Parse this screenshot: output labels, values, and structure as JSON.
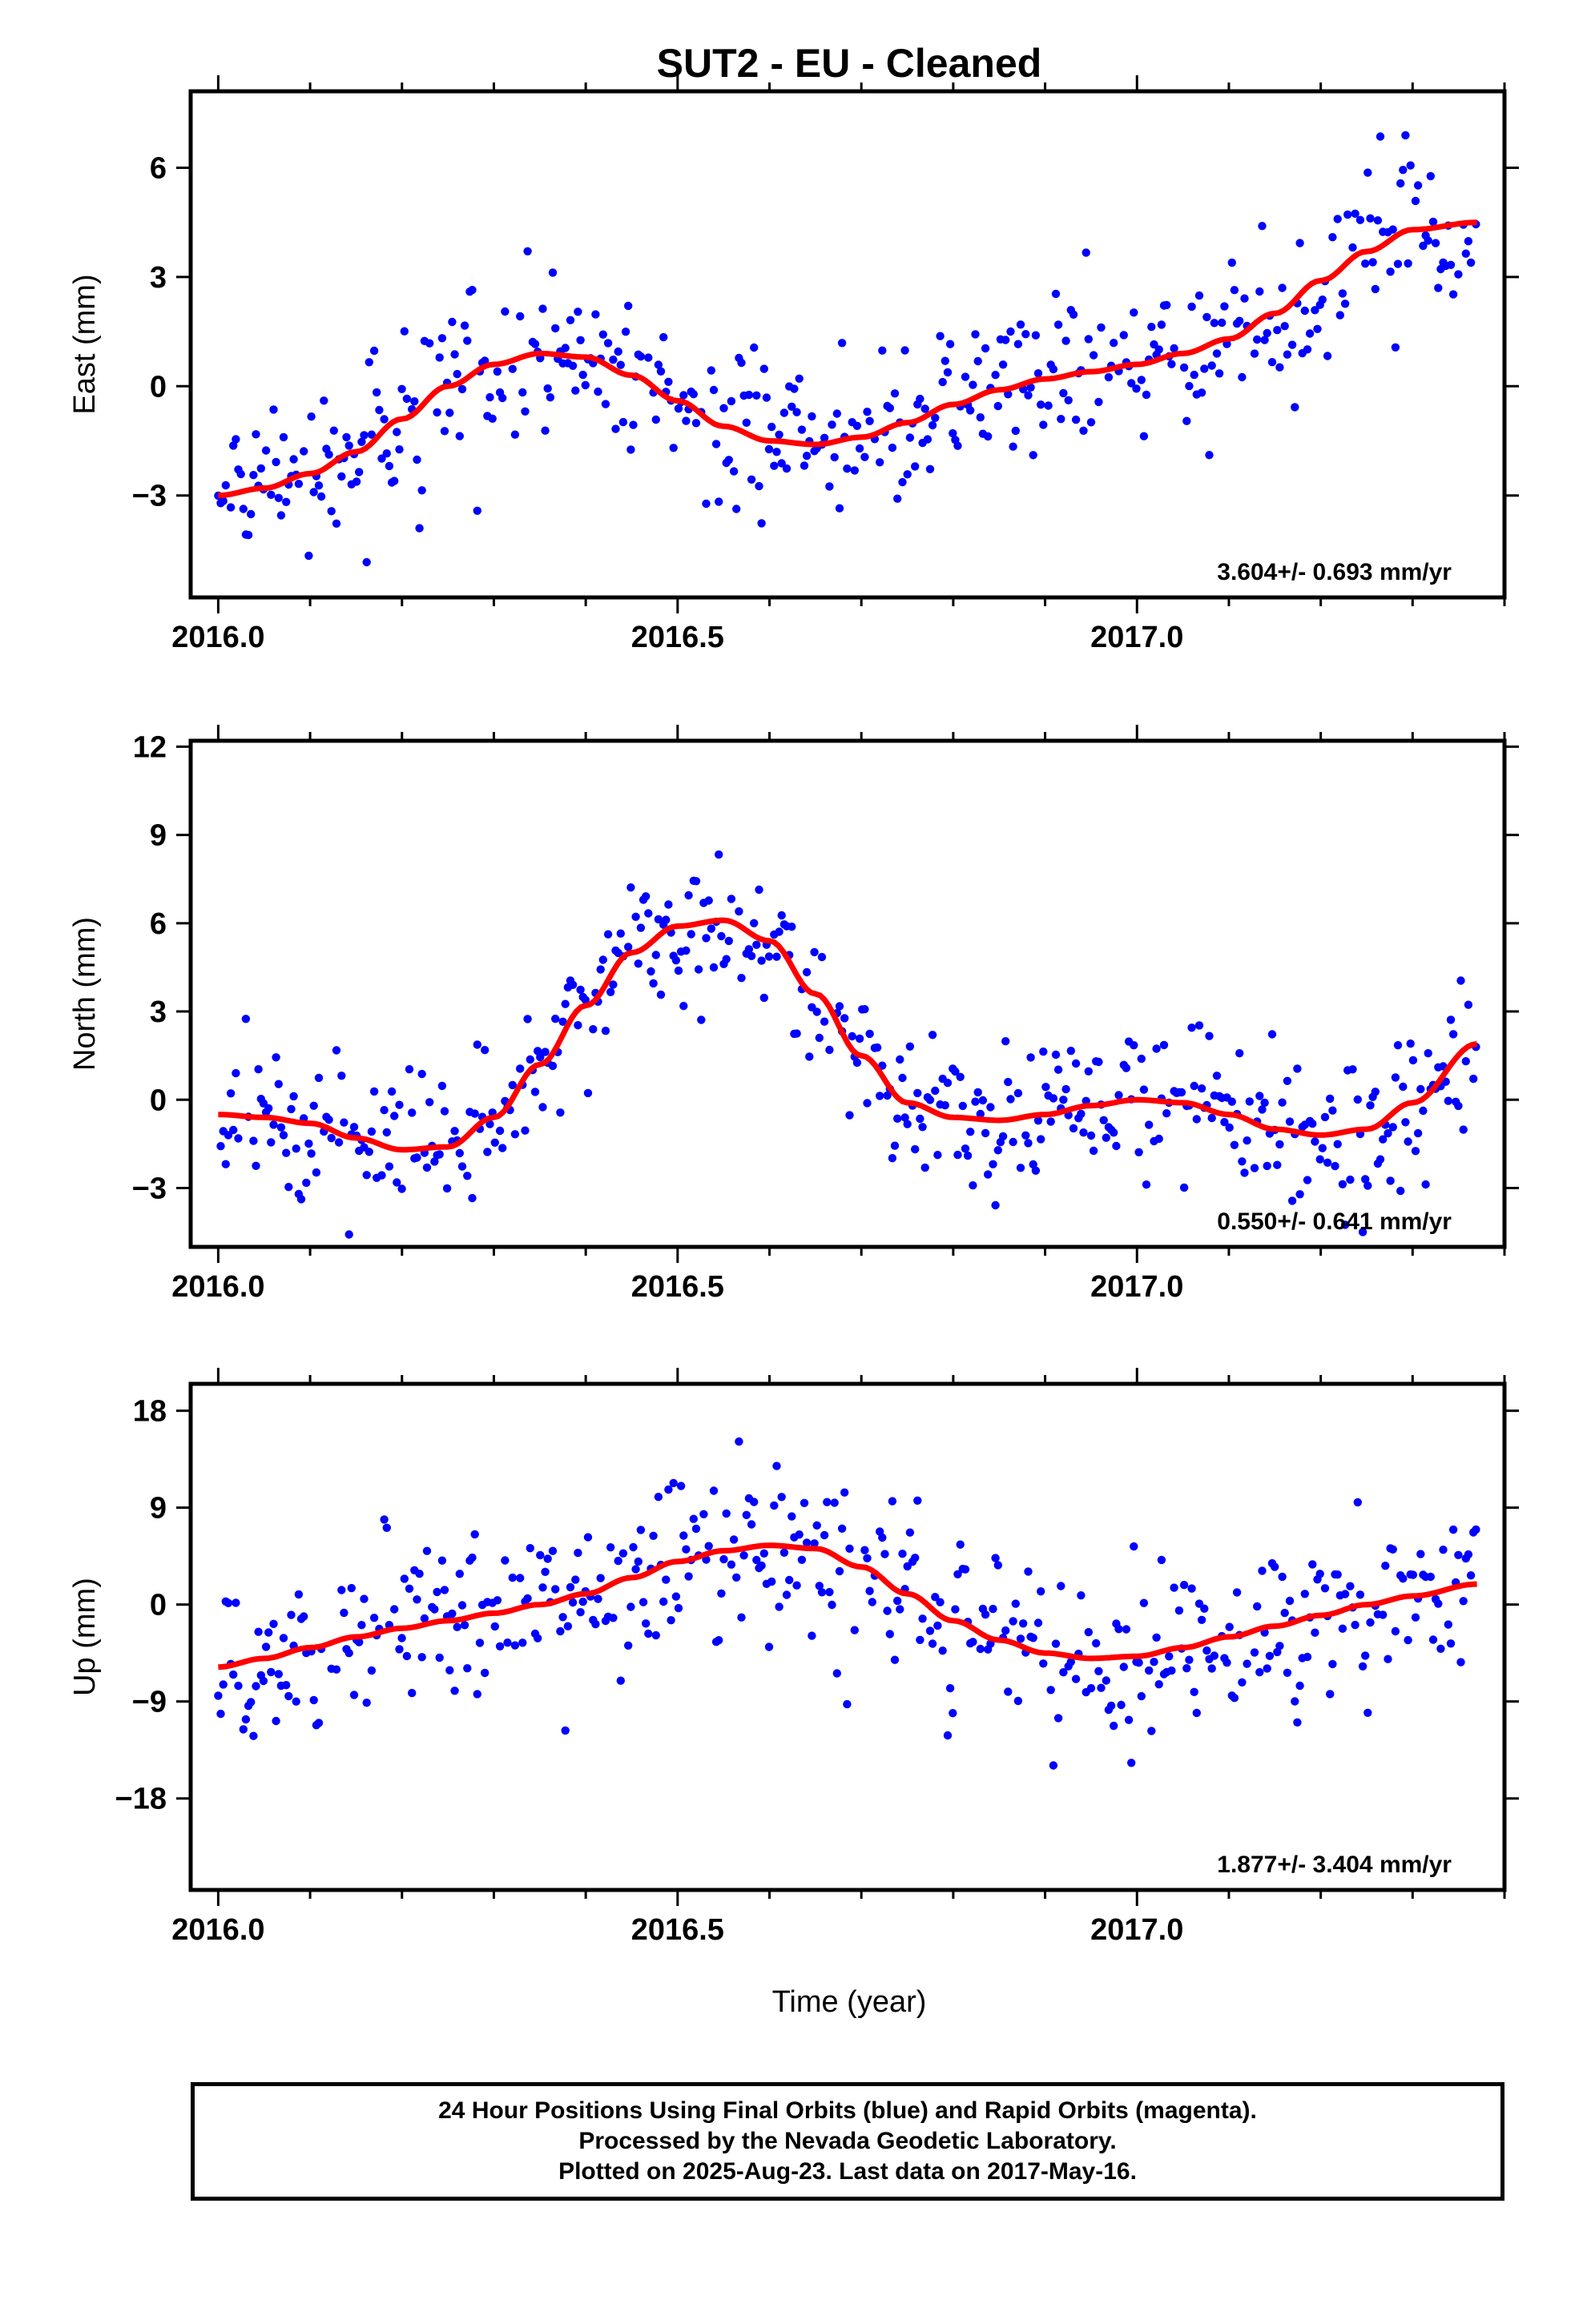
{
  "title": "SUT2  - EU - Cleaned",
  "xlabel": "Time (year)",
  "footer": {
    "line1": "24 Hour Positions Using Final Orbits (blue) and Rapid Orbits (magenta).",
    "line2": "Processed by the Nevada Geodetic Laboratory.",
    "line3": "Plotted on 2025-Aug-23. Last data on 2017-May-16."
  },
  "colors": {
    "points": "#0000ff",
    "fit": "#ff0000",
    "frame": "#000000"
  },
  "chart_data": [
    {
      "type": "scatter",
      "ylabel": "East (mm)",
      "rate": "3.604+/- 0.693 mm/yr",
      "xlim": [
        1995.97,
        2017.4
      ],
      "ylim": [
        -5.8,
        8.1
      ],
      "yticks": [
        -3,
        0,
        3,
        6
      ],
      "ytick_labels": [
        "−3",
        "0",
        "3",
        "6"
      ],
      "fit_nodes": {
        "x": [
          2016.0,
          2016.05,
          2016.1,
          2016.15,
          2016.2,
          2016.25,
          2016.3,
          2016.35,
          2016.4,
          2016.45,
          2016.5,
          2016.55,
          2016.6,
          2016.65,
          2016.7,
          2016.75,
          2016.8,
          2016.85,
          2016.9,
          2016.95,
          2017.0,
          2017.05,
          2017.1,
          2017.15,
          2017.2,
          2017.25,
          2017.3,
          2017.37
        ],
        "y": [
          -3.0,
          -2.8,
          -2.4,
          -1.8,
          -0.9,
          0.0,
          0.6,
          0.9,
          0.8,
          0.3,
          -0.4,
          -1.1,
          -1.5,
          -1.6,
          -1.4,
          -1.0,
          -0.5,
          -0.1,
          0.2,
          0.4,
          0.6,
          0.9,
          1.3,
          2.0,
          2.9,
          3.7,
          4.3,
          4.5
        ]
      },
      "scatter_sd": 1.1
    },
    {
      "type": "scatter",
      "ylabel": "North (mm)",
      "rate": "0.550+/- 0.641 mm/yr",
      "xlim": [
        1995.97,
        2017.4
      ],
      "ylim": [
        -5.0,
        12.2
      ],
      "yticks": [
        -3,
        0,
        3,
        6,
        9,
        12
      ],
      "ytick_labels": [
        "−3",
        "0",
        "3",
        "6",
        "9",
        "12"
      ],
      "fit_nodes": {
        "x": [
          2016.0,
          2016.05,
          2016.1,
          2016.15,
          2016.2,
          2016.25,
          2016.3,
          2016.35,
          2016.4,
          2016.45,
          2016.5,
          2016.55,
          2016.6,
          2016.65,
          2016.7,
          2016.75,
          2016.8,
          2016.85,
          2016.9,
          2016.95,
          2017.0,
          2017.05,
          2017.1,
          2017.15,
          2017.2,
          2017.25,
          2017.3,
          2017.37
        ],
        "y": [
          -0.5,
          -0.6,
          -0.8,
          -1.3,
          -1.7,
          -1.6,
          -0.6,
          1.2,
          3.2,
          5.0,
          5.9,
          6.1,
          5.4,
          3.6,
          1.5,
          -0.1,
          -0.6,
          -0.7,
          -0.5,
          -0.2,
          0.0,
          -0.1,
          -0.5,
          -1.0,
          -1.2,
          -1.0,
          -0.1,
          1.9
        ]
      },
      "scatter_sd": 1.3
    },
    {
      "type": "scatter",
      "ylabel": "Up (mm)",
      "rate": "1.877+/- 3.404 mm/yr",
      "xlim": [
        1995.97,
        2017.4
      ],
      "ylim": [
        -26.5,
        20.5
      ],
      "yticks": [
        -18,
        -9,
        0,
        9,
        18
      ],
      "ytick_labels": [
        "−18",
        "−9",
        "0",
        "9",
        "18"
      ],
      "fit_nodes": {
        "x": [
          2016.0,
          2016.05,
          2016.1,
          2016.15,
          2016.2,
          2016.25,
          2016.3,
          2016.35,
          2016.4,
          2016.45,
          2016.5,
          2016.55,
          2016.6,
          2016.65,
          2016.7,
          2016.75,
          2016.8,
          2016.85,
          2016.9,
          2016.95,
          2017.0,
          2017.05,
          2017.1,
          2017.15,
          2017.2,
          2017.25,
          2017.3,
          2017.37
        ],
        "y": [
          -5.8,
          -5.0,
          -4.0,
          -3.0,
          -2.2,
          -1.5,
          -0.8,
          0.0,
          1.0,
          2.5,
          4.0,
          5.0,
          5.5,
          5.2,
          3.5,
          1.0,
          -1.5,
          -3.3,
          -4.5,
          -5.0,
          -4.8,
          -4.0,
          -3.0,
          -2.0,
          -1.0,
          0.0,
          0.8,
          1.9
        ]
      },
      "scatter_sd": 4.3
    }
  ],
  "xticks": [
    2016.0,
    2016.5,
    2017.0
  ],
  "xtick_labels": [
    "2016.0",
    "2016.5",
    "2017.0"
  ]
}
